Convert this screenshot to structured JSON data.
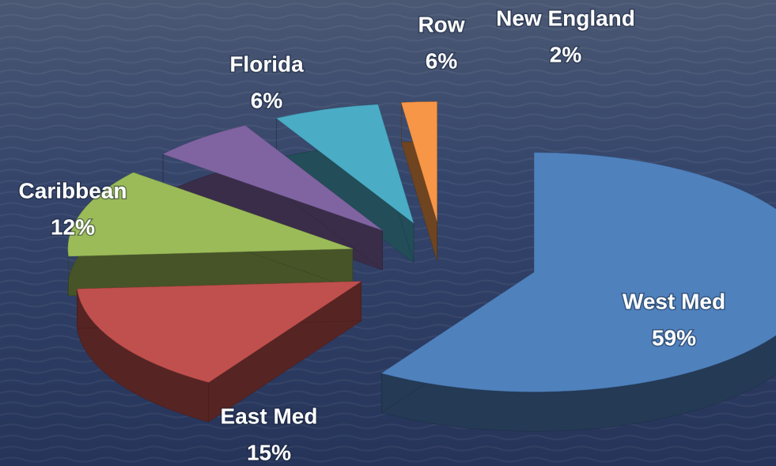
{
  "chart_data": {
    "type": "pie",
    "categories": [
      "West Med",
      "East Med",
      "Caribbean",
      "Florida",
      "Row",
      "New England"
    ],
    "values": [
      59,
      15,
      12,
      6,
      6,
      2
    ],
    "value_labels": [
      "59%",
      "15%",
      "12%",
      "6%",
      "6%",
      "2%"
    ],
    "colors": [
      "#4f81bd",
      "#c0504d",
      "#9bbb59",
      "#8064a2",
      "#4bacc6",
      "#f79646"
    ]
  }
}
